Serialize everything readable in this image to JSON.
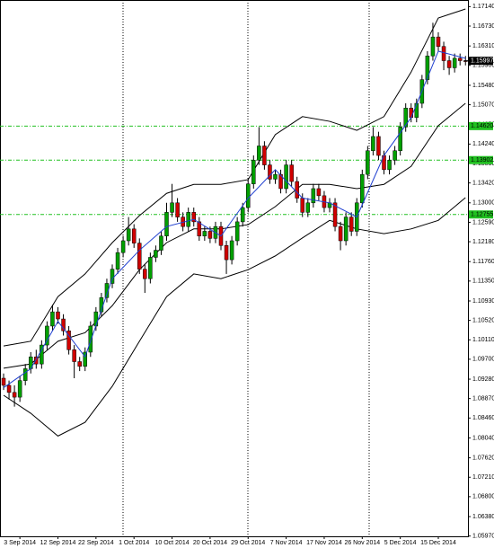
{
  "chart_data": {
    "type": "candlestick",
    "categories": [
      null,
      null,
      null,
      "3 Sep 2014",
      null,
      null,
      null,
      null,
      null,
      null,
      "12 Sep 2014",
      null,
      null,
      null,
      null,
      null,
      null,
      "22 Sep 2014",
      null,
      null,
      null,
      null,
      null,
      null,
      "1 Oct 2014",
      null,
      null,
      null,
      null,
      null,
      null,
      "10 Oct 2014",
      null,
      null,
      null,
      null,
      null,
      null,
      "20 Oct 2014",
      null,
      null,
      null,
      null,
      null,
      null,
      "29 Oct 2014",
      null,
      null,
      null,
      null,
      null,
      null,
      "7 Nov 2014",
      null,
      null,
      null,
      null,
      null,
      null,
      "17 Nov 2014",
      null,
      null,
      null,
      null,
      null,
      null,
      "26 Nov 2014",
      null,
      null,
      null,
      null,
      null,
      null,
      "5 Dec 2014",
      null,
      null,
      null,
      null,
      null,
      null,
      "15 Dec 2014",
      null,
      null,
      null,
      null,
      null
    ],
    "open": [
      1.093,
      1.0915,
      1.09,
      1.089,
      1.0925,
      1.095,
      1.0975,
      1.096,
      1.1,
      1.104,
      1.107,
      1.1055,
      1.103,
      1.099,
      1.0965,
      1.0955,
      1.0985,
      1.104,
      1.107,
      1.11,
      1.113,
      1.116,
      1.1195,
      1.122,
      1.1245,
      1.1215,
      1.116,
      1.114,
      1.1185,
      1.12,
      1.123,
      1.128,
      1.13,
      1.127,
      1.125,
      1.128,
      1.126,
      1.123,
      1.124,
      1.1225,
      1.125,
      1.121,
      1.118,
      1.122,
      1.126,
      1.129,
      1.134,
      1.139,
      1.142,
      1.138,
      1.135,
      1.136,
      1.133,
      1.138,
      1.1345,
      1.131,
      1.128,
      1.13,
      1.133,
      1.1315,
      1.129,
      1.13,
      1.125,
      1.122,
      1.127,
      1.124,
      1.13,
      1.136,
      1.141,
      1.144,
      1.14,
      1.137,
      1.139,
      1.141,
      1.146,
      1.15,
      1.148,
      1.151,
      1.156,
      1.161,
      1.165,
      1.163,
      1.16,
      1.1585,
      1.1605,
      1.16
    ],
    "high": [
      1.094,
      1.0925,
      1.0915,
      1.0935,
      1.096,
      1.0985,
      1.099,
      1.101,
      1.105,
      1.1085,
      1.108,
      1.1065,
      1.104,
      1.1,
      1.0975,
      1.0995,
      1.105,
      1.108,
      1.111,
      1.114,
      1.117,
      1.1205,
      1.123,
      1.127,
      1.1255,
      1.1225,
      1.117,
      1.1195,
      1.121,
      1.124,
      1.13,
      1.134,
      1.131,
      1.128,
      1.129,
      1.129,
      1.127,
      1.125,
      1.125,
      1.126,
      1.126,
      1.122,
      1.123,
      1.127,
      1.13,
      1.135,
      1.14,
      1.146,
      1.143,
      1.139,
      1.137,
      1.137,
      1.139,
      1.139,
      1.1355,
      1.132,
      1.131,
      1.134,
      1.134,
      1.1325,
      1.131,
      1.131,
      1.126,
      1.128,
      1.128,
      1.131,
      1.137,
      1.142,
      1.146,
      1.145,
      1.141,
      1.14,
      1.142,
      1.147,
      1.151,
      1.151,
      1.152,
      1.157,
      1.162,
      1.168,
      1.166,
      1.164,
      1.161,
      1.1615,
      1.1615,
      1.161
    ],
    "low": [
      1.0905,
      1.0885,
      1.087,
      1.088,
      1.0915,
      1.094,
      1.095,
      1.095,
      1.099,
      1.103,
      1.1045,
      1.102,
      1.098,
      1.093,
      1.0945,
      1.0945,
      1.0975,
      1.103,
      1.106,
      1.109,
      1.112,
      1.115,
      1.1185,
      1.121,
      1.1205,
      1.115,
      1.111,
      1.113,
      1.1175,
      1.119,
      1.122,
      1.127,
      1.126,
      1.124,
      1.124,
      1.125,
      1.122,
      1.122,
      1.1215,
      1.1215,
      1.12,
      1.115,
      1.117,
      1.121,
      1.125,
      1.128,
      1.133,
      1.138,
      1.137,
      1.134,
      1.134,
      1.132,
      1.132,
      1.1335,
      1.13,
      1.127,
      1.127,
      1.129,
      1.1305,
      1.128,
      1.128,
      1.124,
      1.12,
      1.121,
      1.123,
      1.123,
      1.129,
      1.135,
      1.14,
      1.139,
      1.136,
      1.136,
      1.138,
      1.14,
      1.145,
      1.147,
      1.147,
      1.15,
      1.155,
      1.16,
      1.162,
      1.158,
      1.157,
      1.1575,
      1.159,
      1.159
    ],
    "close": [
      1.0915,
      1.09,
      1.089,
      1.0925,
      1.095,
      1.0975,
      1.096,
      1.1,
      1.104,
      1.107,
      1.1055,
      1.103,
      1.099,
      1.0965,
      1.0955,
      1.0985,
      1.104,
      1.107,
      1.11,
      1.113,
      1.116,
      1.1195,
      1.122,
      1.1245,
      1.1215,
      1.116,
      1.114,
      1.1185,
      1.12,
      1.123,
      1.128,
      1.13,
      1.127,
      1.125,
      1.128,
      1.126,
      1.123,
      1.124,
      1.1225,
      1.125,
      1.121,
      1.118,
      1.122,
      1.126,
      1.129,
      1.134,
      1.139,
      1.142,
      1.138,
      1.135,
      1.136,
      1.133,
      1.138,
      1.1345,
      1.131,
      1.128,
      1.13,
      1.133,
      1.1315,
      1.129,
      1.13,
      1.125,
      1.122,
      1.127,
      1.124,
      1.13,
      1.136,
      1.141,
      1.144,
      1.14,
      1.137,
      1.139,
      1.141,
      1.146,
      1.15,
      1.148,
      1.151,
      1.156,
      1.161,
      1.165,
      1.163,
      1.16,
      1.1585,
      1.1605,
      1.16,
      1.15997
    ],
    "up_color": "#00a000",
    "down_color": "#d00000",
    "bands": {
      "x": [
        0,
        5,
        10,
        15,
        20,
        25,
        30,
        35,
        40,
        45,
        50,
        55,
        60,
        65,
        70,
        75,
        80,
        85
      ],
      "upper": [
        1.0998,
        1.1008,
        1.1102,
        1.115,
        1.1216,
        1.1273,
        1.132,
        1.1339,
        1.1339,
        1.1349,
        1.1444,
        1.1482,
        1.1472,
        1.1453,
        1.1482,
        1.1576,
        1.169,
        1.1709
      ],
      "middle": [
        1.0951,
        1.096,
        1.1008,
        1.1026,
        1.1083,
        1.1159,
        1.1216,
        1.1245,
        1.1245,
        1.1254,
        1.1292,
        1.1339,
        1.1339,
        1.133,
        1.1339,
        1.1377,
        1.1463,
        1.151
      ],
      "lower": [
        1.0894,
        1.0856,
        1.0808,
        1.0837,
        1.0913,
        1.1008,
        1.1102,
        1.115,
        1.114,
        1.1159,
        1.1188,
        1.1226,
        1.1263,
        1.1245,
        1.1235,
        1.1245,
        1.1263,
        1.1311
      ],
      "ma": [
        1.091,
        1.095,
        1.105,
        1.0975,
        1.114,
        1.12,
        1.125,
        1.1265,
        1.123,
        1.131,
        1.137,
        1.131,
        1.13,
        1.127,
        1.14,
        1.148,
        1.162,
        1.1605
      ],
      "band_color": "#000000",
      "ma_color": "#1f3fd0"
    },
    "levels": [
      {
        "value": 1.1462,
        "label": "1.14620"
      },
      {
        "value": 1.13902,
        "label": "1.13902"
      },
      {
        "value": 1.12755,
        "label": "1.12755"
      }
    ],
    "level_color": "#20c020",
    "current_price": 1.15997,
    "ylim": [
      1.0585,
      1.1728
    ],
    "yticks": [
      {
        "value": 1.1714,
        "label": "1.17140"
      },
      {
        "value": 1.1673,
        "label": "1.16730"
      },
      {
        "value": 1.1631,
        "label": "1.16310"
      },
      {
        "value": 1.159,
        "label": "1.15900"
      },
      {
        "value": 1.1548,
        "label": "1.15480"
      },
      {
        "value": 1.1507,
        "label": "1.15070"
      },
      {
        "value": 1.1465,
        "label": "1.14650"
      },
      {
        "value": 1.1424,
        "label": "1.14240"
      },
      {
        "value": 1.1383,
        "label": "1.13830"
      },
      {
        "value": 1.1342,
        "label": "1.13420"
      },
      {
        "value": 1.13,
        "label": "1.13000"
      },
      {
        "value": 1.1259,
        "label": "1.12590"
      },
      {
        "value": 1.1218,
        "label": "1.12180"
      },
      {
        "value": 1.1176,
        "label": "1.11760"
      },
      {
        "value": 1.1135,
        "label": "1.11350"
      },
      {
        "value": 1.1093,
        "label": "1.10930"
      },
      {
        "value": 1.1052,
        "label": "1.10520"
      },
      {
        "value": 1.1011,
        "label": "1.10110"
      },
      {
        "value": 1.097,
        "label": "1.09700"
      },
      {
        "value": 1.0928,
        "label": "1.09280"
      },
      {
        "value": 1.0887,
        "label": "1.08870"
      },
      {
        "value": 1.0846,
        "label": "1.08460"
      },
      {
        "value": 1.0804,
        "label": "1.08040"
      },
      {
        "value": 1.0762,
        "label": "1.07620"
      },
      {
        "value": 1.0721,
        "label": "1.07210"
      },
      {
        "value": 1.068,
        "label": "1.06800"
      },
      {
        "value": 1.0638,
        "label": "1.06380"
      },
      {
        "value": 1.0597,
        "label": "1.05970"
      }
    ]
  }
}
